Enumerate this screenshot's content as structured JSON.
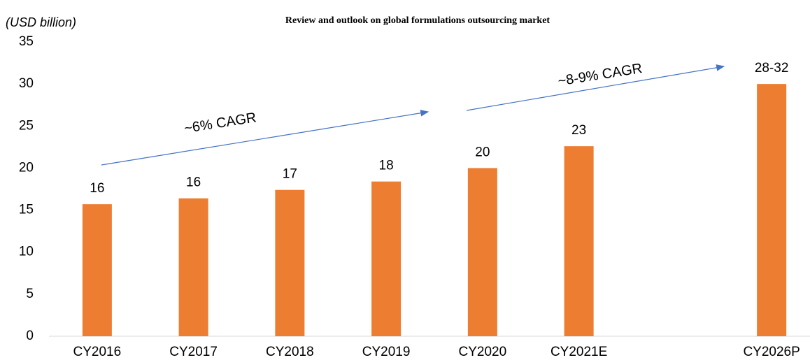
{
  "chart_data": {
    "type": "bar",
    "title": "Review and outlook on global formulations outsourcing market",
    "y_label": "(USD billion)",
    "categories": [
      "CY2016",
      "CY2017",
      "CY2018",
      "CY2019",
      "CY2020",
      "CY2021E",
      null,
      "CY2026P"
    ],
    "values": [
      15.7,
      16.4,
      17.4,
      18.4,
      20.0,
      22.6,
      null,
      30.0
    ],
    "value_labels": [
      "16",
      "16",
      "17",
      "18",
      "20",
      "23",
      null,
      "28-32"
    ],
    "color": "#ed7d31",
    "ylim": [
      0,
      35
    ],
    "yticks": [
      0,
      5,
      10,
      15,
      20,
      25,
      30,
      35
    ],
    "grid": false,
    "annotations": [
      "~6% CAGR",
      "~8-9% CAGR"
    ]
  }
}
